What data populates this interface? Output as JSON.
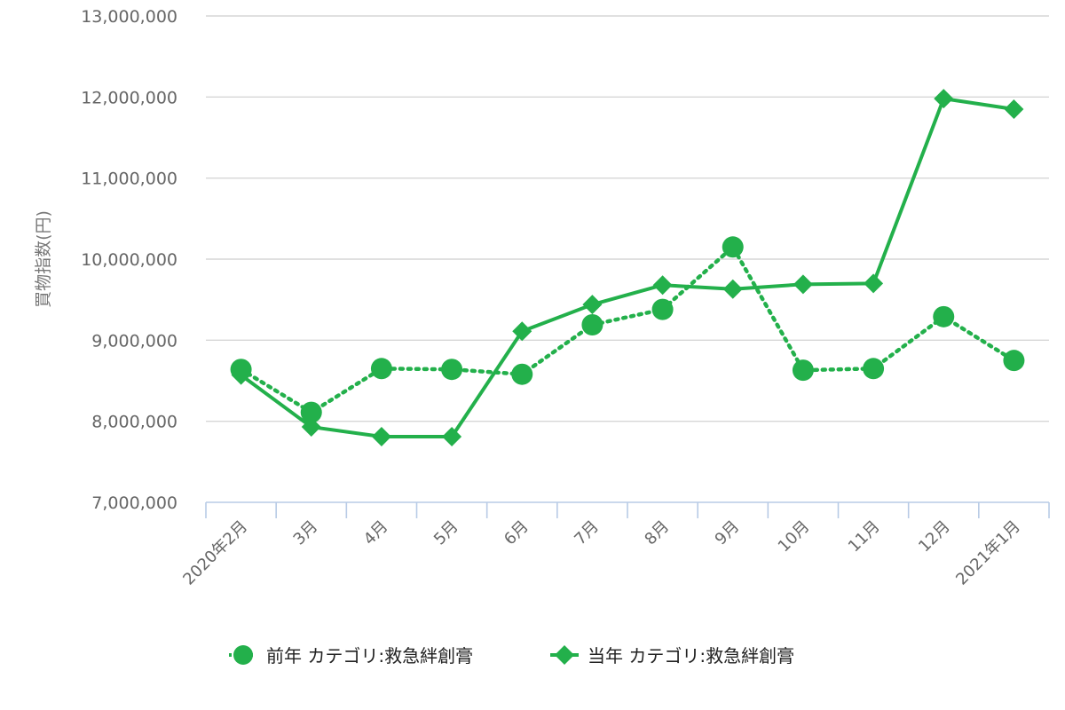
{
  "chart_data": {
    "type": "line",
    "title": "",
    "xlabel": "",
    "ylabel": "買物指数(円)",
    "categories": [
      "2020年2月",
      "3月",
      "4月",
      "5月",
      "6月",
      "7月",
      "8月",
      "9月",
      "10月",
      "11月",
      "12月",
      "2021年1月"
    ],
    "ylim": [
      7000000,
      13000000
    ],
    "yticks": [
      7000000,
      8000000,
      9000000,
      10000000,
      11000000,
      12000000,
      13000000
    ],
    "ytick_labels": [
      "7,000,000",
      "8,000,000",
      "9,000,000",
      "10,000,000",
      "11,000,000",
      "12,000,000",
      "13,000,000"
    ],
    "grid": true,
    "legend_position": "bottom-center",
    "series": [
      {
        "name": "前年 カテゴリ:救急絆創膏",
        "marker": "circle",
        "line_style": "dotted",
        "color": "#23b04b",
        "values": [
          8640000,
          8110000,
          8650000,
          8640000,
          8580000,
          9190000,
          9380000,
          10150000,
          8630000,
          8650000,
          9290000,
          8750000
        ]
      },
      {
        "name": "当年 カテゴリ:救急絆創膏",
        "marker": "diamond",
        "line_style": "solid",
        "color": "#23b04b",
        "values": [
          8570000,
          7930000,
          7810000,
          7810000,
          9110000,
          9440000,
          9680000,
          9630000,
          9690000,
          9700000,
          11980000,
          11850000
        ]
      }
    ]
  }
}
